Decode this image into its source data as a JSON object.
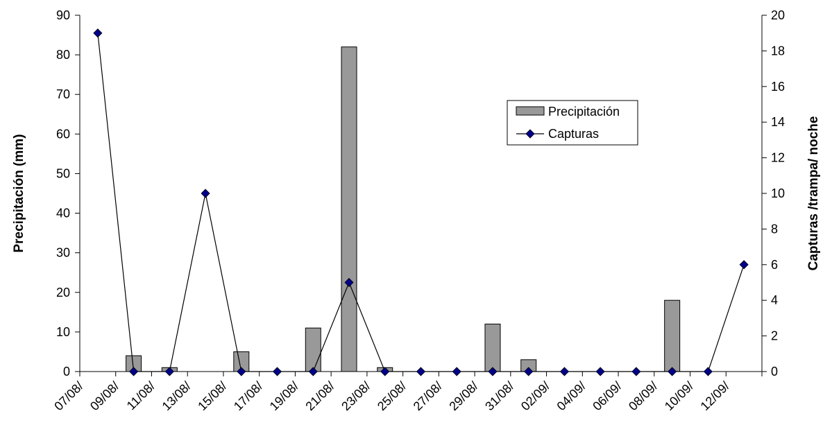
{
  "chart_data": {
    "type": "bar",
    "categories": [
      "07/08/",
      "09/08/",
      "11/08/",
      "13/08/",
      "15/08/",
      "17/08/",
      "19/08/",
      "21/08/",
      "23/08/",
      "25/08/",
      "27/08/",
      "29/08/",
      "31/08/",
      "02/09/",
      "04/09/",
      "06/09/",
      "08/09/",
      "10/09/",
      "12/09/"
    ],
    "series": [
      {
        "name": "Precipitación",
        "type": "bar",
        "axis": "left",
        "color": "#999999",
        "values": [
          null,
          4,
          1,
          null,
          5,
          0,
          11,
          82,
          1,
          0,
          0,
          12,
          3,
          0,
          0,
          0,
          18,
          0,
          null
        ]
      },
      {
        "name": "Capturas",
        "type": "line",
        "axis": "right",
        "color": "#000000",
        "marker_color": "#00008B",
        "values": [
          19,
          0,
          0,
          10,
          0,
          0,
          0,
          5,
          0,
          0,
          0,
          0,
          0,
          0,
          0,
          0,
          0,
          0,
          6
        ]
      }
    ],
    "ylabel": "Precipitación (mm)",
    "y2label": "Capturas /trampa/ noche",
    "ylim": [
      0,
      90
    ],
    "y2lim": [
      0,
      20
    ],
    "yticks": [
      "0",
      "10",
      "20",
      "30",
      "40",
      "50",
      "60",
      "70",
      "80",
      "90"
    ],
    "y2ticks": [
      "0",
      "2",
      "4",
      "6",
      "8",
      "10",
      "12",
      "14",
      "16",
      "18",
      "20"
    ],
    "legend_position": "upper-right-inside",
    "grid": false
  }
}
